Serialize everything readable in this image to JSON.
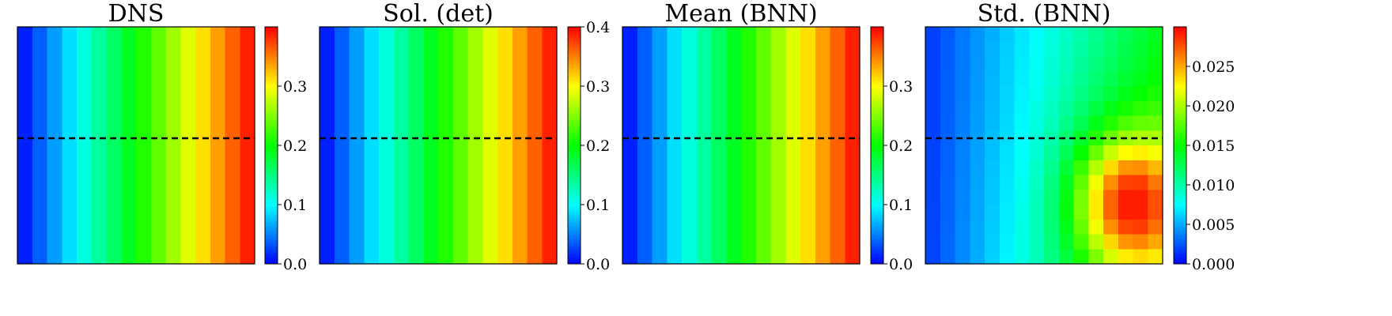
{
  "colormap": [
    "#0000ff",
    "#00ffff",
    "#00ff00",
    "#ffff00",
    "#ff0000"
  ],
  "cut_line": {
    "style": "dashed",
    "color": "#000000"
  },
  "chart_data": [
    {
      "type": "heatmap",
      "title": "DNS",
      "grid": [
        16,
        16
      ],
      "field": "linear-x",
      "range": [
        0.0,
        0.4
      ],
      "colorbar": {
        "range": [
          0.0,
          0.4
        ],
        "ticks": [
          "0.0",
          "0.1",
          "0.2",
          "0.3"
        ],
        "tick_values": [
          0.0,
          0.1,
          0.2,
          0.3
        ]
      },
      "cut_line_y": 0.47
    },
    {
      "type": "heatmap",
      "title": "Sol. (det)",
      "grid": [
        16,
        16
      ],
      "field": "linear-x",
      "range": [
        0.0,
        0.4
      ],
      "colorbar": {
        "range": [
          0.0,
          0.4
        ],
        "ticks": [
          "0.0",
          "0.1",
          "0.2",
          "0.3",
          "0.4"
        ],
        "tick_values": [
          0.0,
          0.1,
          0.2,
          0.3,
          0.4
        ]
      },
      "cut_line_y": 0.47
    },
    {
      "type": "heatmap",
      "title": "Mean (BNN)",
      "grid": [
        16,
        16
      ],
      "field": "linear-x",
      "range": [
        0.0,
        0.4
      ],
      "colorbar": {
        "range": [
          0.0,
          0.4
        ],
        "ticks": [
          "0.0",
          "0.1",
          "0.2",
          "0.3"
        ],
        "tick_values": [
          0.0,
          0.1,
          0.2,
          0.3
        ]
      },
      "cut_line_y": 0.47
    },
    {
      "type": "heatmap",
      "title": "Std. (BNN)",
      "grid": [
        16,
        16
      ],
      "field": "uncertainty",
      "range": [
        0.0,
        0.03
      ],
      "colorbar": {
        "range": [
          0.0,
          0.03
        ],
        "ticks": [
          "0.000",
          "0.005",
          "0.010",
          "0.015",
          "0.020",
          "0.025"
        ],
        "tick_values": [
          0.0,
          0.005,
          0.01,
          0.015,
          0.02,
          0.025
        ]
      },
      "cut_line_y": 0.47
    }
  ]
}
